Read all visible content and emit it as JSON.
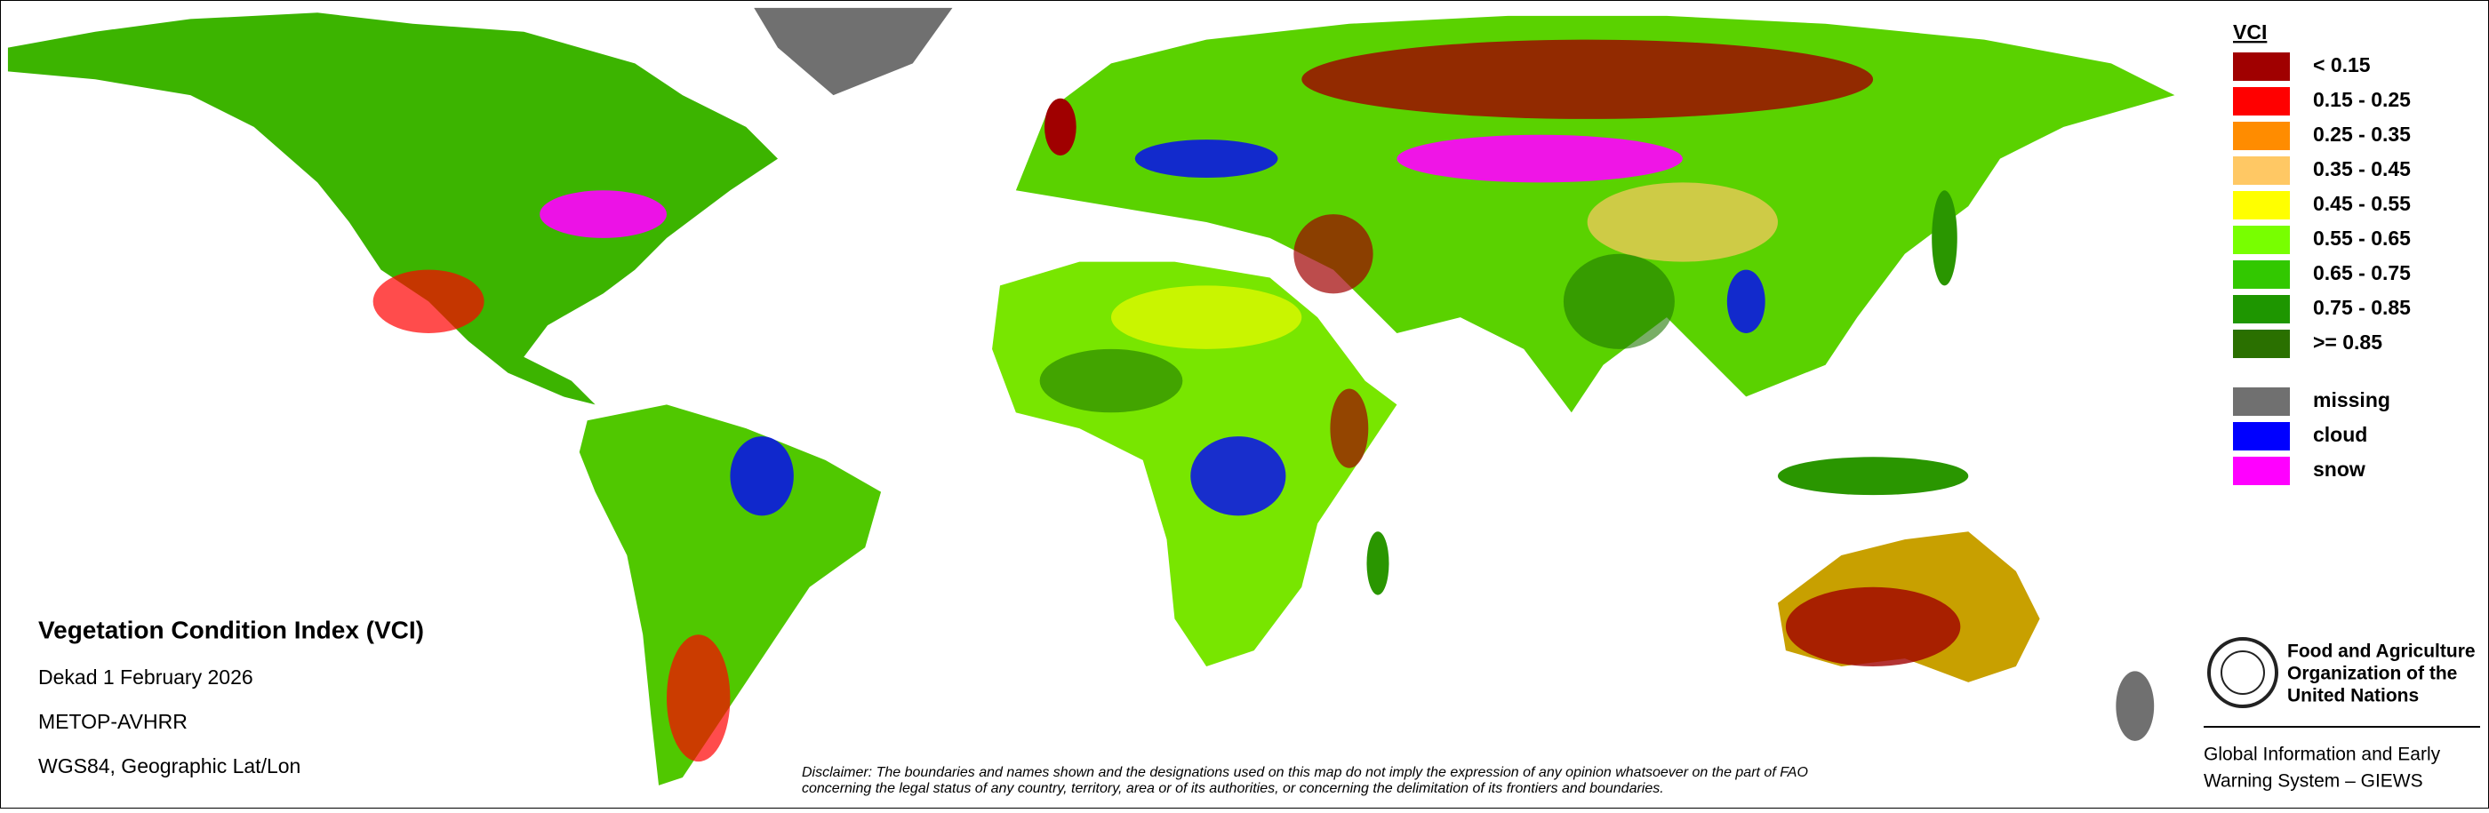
{
  "legend": {
    "title": "VCI",
    "vci_classes": [
      {
        "label": "< 0.15",
        "color": "#a00000"
      },
      {
        "label": "0.15 - 0.25",
        "color": "#ff0000"
      },
      {
        "label": "0.25 - 0.35",
        "color": "#ff8c00"
      },
      {
        "label": "0.35 - 0.45",
        "color": "#ffc864"
      },
      {
        "label": "0.45 - 0.55",
        "color": "#ffff00"
      },
      {
        "label": "0.55 - 0.65",
        "color": "#78ff00"
      },
      {
        "label": "0.65 - 0.75",
        "color": "#32c800"
      },
      {
        "label": "0.75 - 0.85",
        "color": "#1e9600"
      },
      {
        "label": ">= 0.85",
        "color": "#2a7000"
      }
    ],
    "other_classes": [
      {
        "label": "missing",
        "color": "#707070"
      },
      {
        "label": "cloud",
        "color": "#0000ff"
      },
      {
        "label": "snow",
        "color": "#ff00ff"
      }
    ]
  },
  "info": {
    "title": "Vegetation Condition Index (VCI)",
    "lines": [
      "Dekad 1 February 2026",
      "METOP-AVHRR",
      "WGS84, Geographic Lat/Lon"
    ]
  },
  "disclaimer": [
    "Disclaimer: The boundaries and names shown and the designations used on this map do not imply the expression of any opinion whatsoever on the part of FAO",
    "concerning the legal status of any country, territory, area or of its authorities, or concerning the delimitation of its frontiers and boundaries."
  ],
  "fao": {
    "name": [
      "Food and Agriculture",
      "Organization of the",
      "United Nations"
    ]
  },
  "giews": [
    "Global Information and Early",
    "Warning System – GIEWS"
  ]
}
